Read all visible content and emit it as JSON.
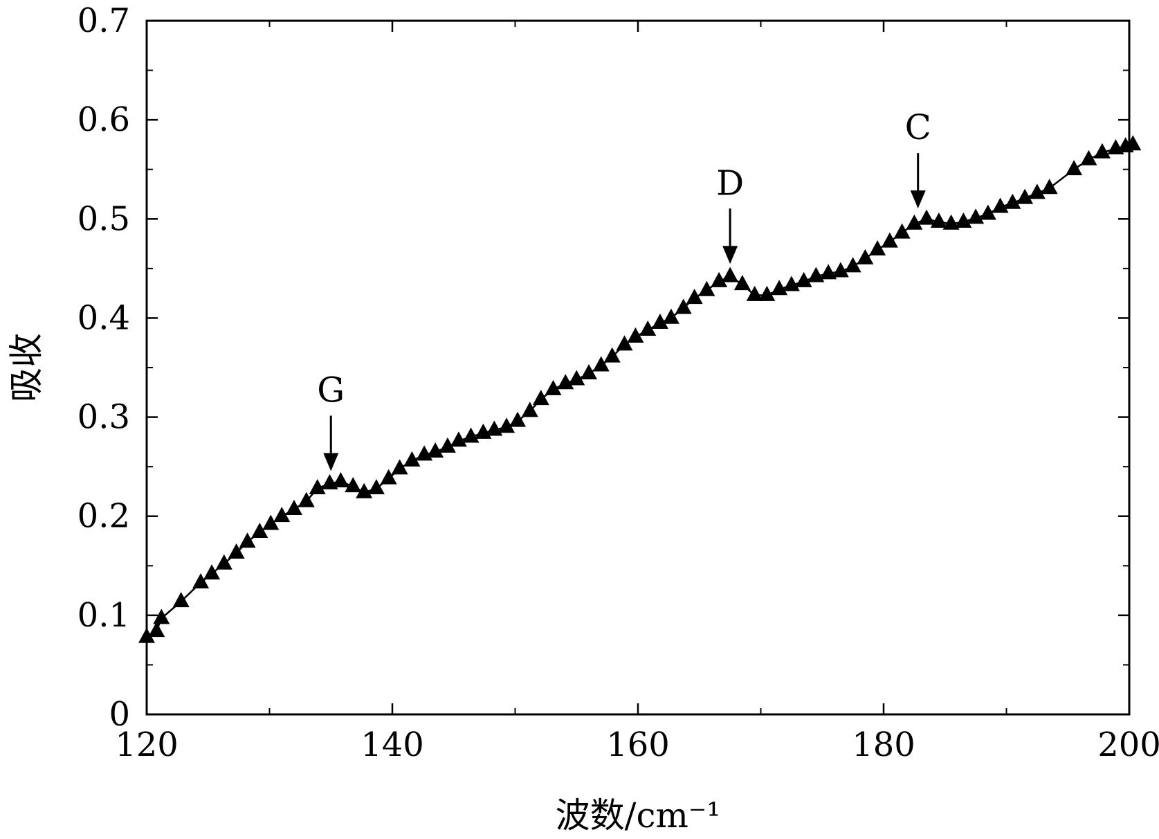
{
  "chart_data": {
    "type": "line",
    "xlabel": "波数/cm⁻¹",
    "ylabel": "吸收",
    "xlim": [
      120,
      200
    ],
    "ylim": [
      0,
      0.7
    ],
    "xticks": [
      "120",
      "140",
      "160",
      "180",
      "200"
    ],
    "yticks": [
      "0",
      "0.1",
      "0.2",
      "0.3",
      "0.4",
      "0.5",
      "0.6",
      "0.7"
    ],
    "grid": false,
    "marker": "triangle",
    "series": [
      {
        "x": [
          120.0,
          120.8,
          121.2,
          122.8,
          124.4,
          125.3,
          126.3,
          127.3,
          128.2,
          129.2,
          130.1,
          131.0,
          132.0,
          133.0,
          133.9,
          134.9,
          135.8,
          136.8,
          137.7,
          138.7,
          139.7,
          140.6,
          141.6,
          142.6,
          143.5,
          144.5,
          145.4,
          146.4,
          147.4,
          148.3,
          149.3,
          150.2,
          151.2,
          152.1,
          153.1,
          154.1,
          155.0,
          156.0,
          157.0,
          157.9,
          158.9,
          159.8,
          160.8,
          161.8,
          162.7,
          163.7,
          164.6,
          165.6,
          166.6,
          167.5,
          168.5,
          169.5,
          170.5,
          171.5,
          172.5,
          173.5,
          174.5,
          175.5,
          176.5,
          177.5,
          178.5,
          179.5,
          180.5,
          181.5,
          182.5,
          183.5,
          184.5,
          185.5,
          186.5,
          187.5,
          188.5,
          189.5,
          190.5,
          191.5,
          192.5,
          193.5,
          195.5,
          196.7,
          197.8,
          198.9,
          199.7,
          200.3
        ],
        "y": [
          0.078,
          0.084,
          0.097,
          0.114,
          0.133,
          0.142,
          0.152,
          0.163,
          0.174,
          0.184,
          0.192,
          0.2,
          0.207,
          0.215,
          0.228,
          0.233,
          0.235,
          0.23,
          0.224,
          0.228,
          0.238,
          0.248,
          0.256,
          0.262,
          0.265,
          0.27,
          0.276,
          0.28,
          0.284,
          0.287,
          0.29,
          0.296,
          0.306,
          0.318,
          0.328,
          0.334,
          0.338,
          0.344,
          0.352,
          0.361,
          0.373,
          0.381,
          0.388,
          0.395,
          0.4,
          0.41,
          0.42,
          0.428,
          0.437,
          0.442,
          0.434,
          0.423,
          0.423,
          0.429,
          0.433,
          0.437,
          0.442,
          0.445,
          0.447,
          0.452,
          0.46,
          0.469,
          0.477,
          0.486,
          0.495,
          0.5,
          0.497,
          0.495,
          0.497,
          0.501,
          0.505,
          0.512,
          0.516,
          0.521,
          0.526,
          0.531,
          0.55,
          0.56,
          0.567,
          0.571,
          0.573,
          0.575
        ]
      }
    ],
    "annotations": [
      {
        "label": "G",
        "x": 135.0,
        "y": 0.233
      },
      {
        "label": "D",
        "x": 167.5,
        "y": 0.442
      },
      {
        "label": "C",
        "x": 182.8,
        "y": 0.498
      }
    ]
  }
}
